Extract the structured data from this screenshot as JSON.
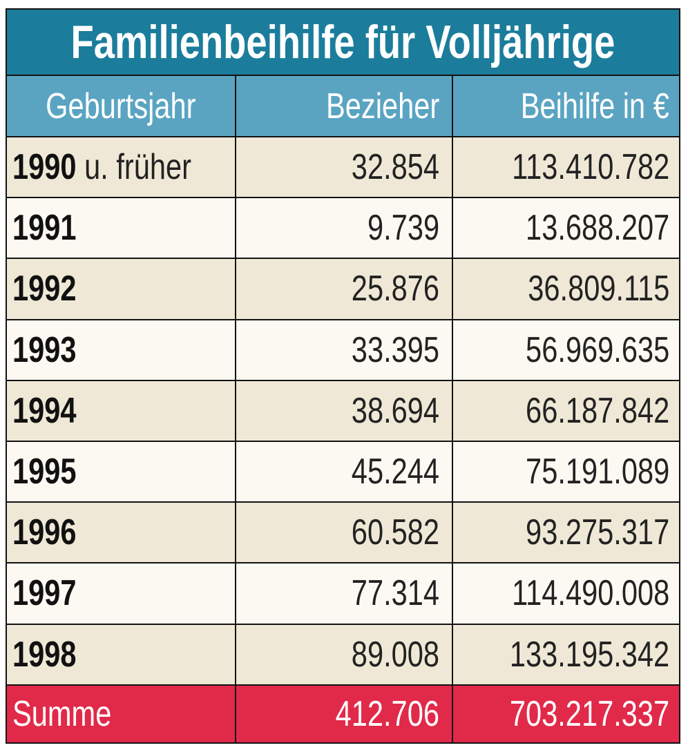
{
  "title": "Familienbeihilfe für Volljährige",
  "table": {
    "header": [
      "Geburtsjahr",
      "Bezieher",
      "Beihilfe in €"
    ],
    "rows": [
      {
        "year": "1990",
        "note": "u. früher",
        "bezieher": "32.854",
        "beihilfe": "113.410.782"
      },
      {
        "year": "1991",
        "bezieher": "9.739",
        "beihilfe": "13.688.207"
      },
      {
        "year": "1992",
        "bezieher": "25.876",
        "beihilfe": "36.809.115"
      },
      {
        "year": "1993",
        "bezieher": "33.395",
        "beihilfe": "56.969.635"
      },
      {
        "year": "1994",
        "bezieher": "38.694",
        "beihilfe": "66.187.842"
      },
      {
        "year": "1995",
        "bezieher": "45.244",
        "beihilfe": "75.191.089"
      },
      {
        "year": "1996",
        "bezieher": "60.582",
        "beihilfe": "93.275.317"
      },
      {
        "year": "1997",
        "bezieher": "77.314",
        "beihilfe": "114.490.008"
      },
      {
        "year": "1998",
        "bezieher": "89.008",
        "beihilfe": "133.195.342"
      }
    ],
    "total": {
      "label": "Summe",
      "bezieher": "412.706",
      "beihilfe": "703.217.337"
    }
  }
}
